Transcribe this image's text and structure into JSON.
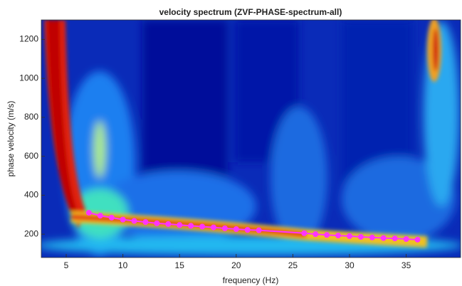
{
  "chart_data": {
    "type": "line",
    "title": "velocity spectrum (ZVF-PHASE-spectrum-all)",
    "x_label": "frequency (Hz)",
    "y_label": "phase velocity (m/s)",
    "x": [
      7,
      8,
      9,
      10,
      11,
      12,
      13,
      14,
      15,
      16,
      17,
      18,
      19,
      20,
      21,
      22,
      26,
      27,
      28,
      29,
      30,
      31,
      32,
      33,
      34,
      35,
      36
    ],
    "values": [
      310,
      295,
      285,
      275,
      268,
      262,
      256,
      252,
      247,
      243,
      239,
      235,
      230,
      226,
      222,
      220,
      205,
      200,
      196,
      193,
      190,
      186,
      183,
      180,
      178,
      175,
      172
    ],
    "color": "#ff33ff",
    "xlim": [
      2.8,
      39.8
    ],
    "ylim": [
      80,
      1300
    ],
    "xticks": [
      5,
      10,
      15,
      20,
      25,
      30,
      35
    ],
    "yticks": [
      200,
      400,
      600,
      800,
      1000,
      1200
    ]
  }
}
